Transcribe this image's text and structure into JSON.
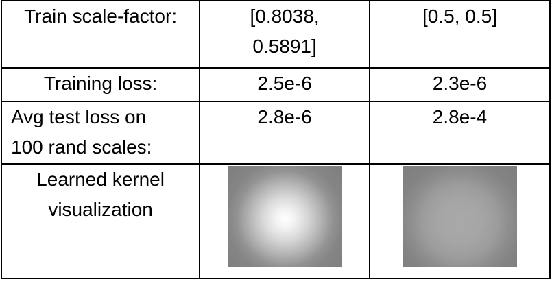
{
  "rows": [
    {
      "label": "Train scale-factor:",
      "col_a": [
        "[0.8038,",
        "0.5891]"
      ],
      "col_b": "[0.5, 0.5]"
    },
    {
      "label": "Training loss:",
      "col_a": "2.5e-6",
      "col_b": "2.3e-6"
    },
    {
      "label": [
        "Avg test loss on",
        "100 rand scales:"
      ],
      "col_a": "2.8e-6",
      "col_b": "2.8e-4"
    },
    {
      "label": [
        "Learned kernel",
        "visualization"
      ],
      "col_a_image": "learned-kernel-bright-center",
      "col_b_image": "learned-kernel-diffuse"
    }
  ]
}
